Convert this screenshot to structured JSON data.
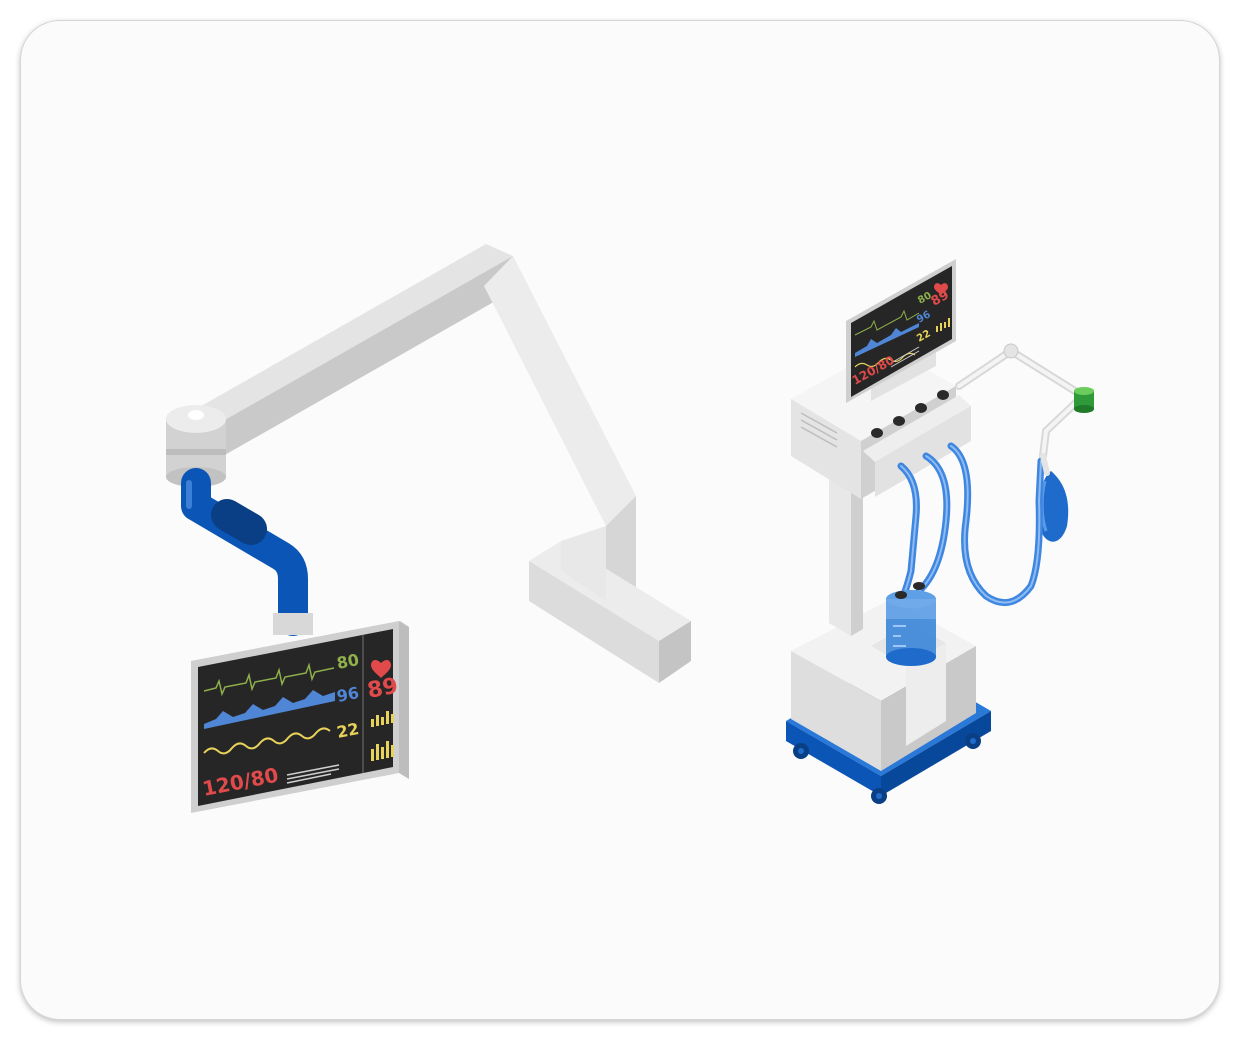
{
  "monitor_large": {
    "heart_rate": "80",
    "spo2": "96",
    "resp_rate": "22",
    "blood_pressure": "120/80",
    "pulse": "89"
  },
  "monitor_small": {
    "heart_rate": "80",
    "spo2": "96",
    "resp_rate": "22",
    "blood_pressure": "120/80",
    "pulse": "89"
  },
  "colors": {
    "ecg": "#8fb04a",
    "spo2": "#4f86d6",
    "resp": "#e8d35a",
    "bp": "#e04a4a",
    "heart": "#e04a4a",
    "screen": "#262626",
    "accent_blue": "#0a5cc0"
  },
  "icons": [
    "heart-icon",
    "bar-graph-icon"
  ]
}
